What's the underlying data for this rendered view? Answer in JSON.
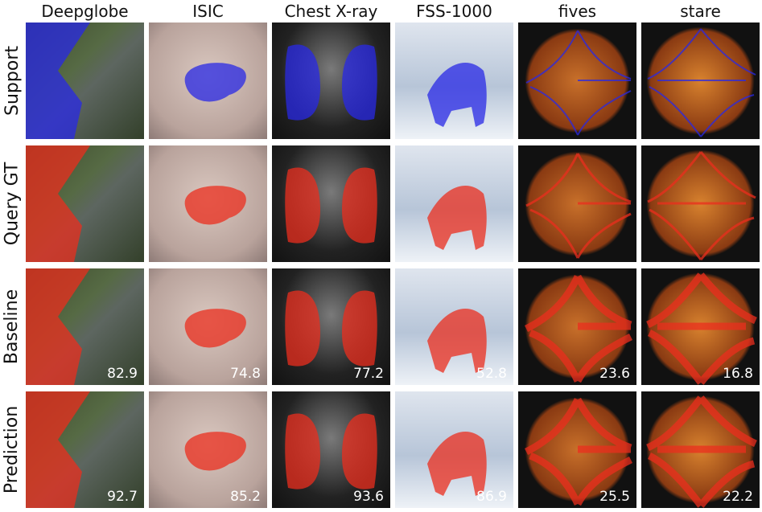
{
  "columns": [
    "Deepglobe",
    "ISIC",
    "Chest X-ray",
    "FSS-1000",
    "fives",
    "stare"
  ],
  "rows": [
    {
      "label": "Support"
    },
    {
      "label": "Query GT"
    },
    {
      "label": "Baseline",
      "scores": [
        82.9,
        74.8,
        77.2,
        52.8,
        23.6,
        16.8
      ]
    },
    {
      "label": "Prediction",
      "scores": [
        92.7,
        85.2,
        93.6,
        86.9,
        25.5,
        22.2
      ]
    }
  ]
}
